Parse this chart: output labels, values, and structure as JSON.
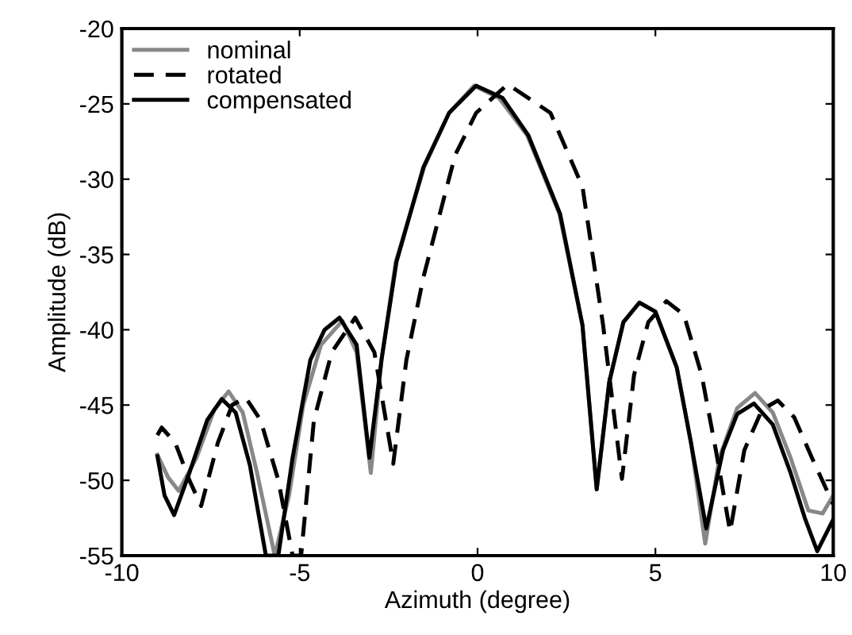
{
  "chart_data": {
    "type": "line",
    "xlabel": "Azimuth (degree)",
    "ylabel": "Amplitude (dB)",
    "xlim": [
      -10,
      10
    ],
    "ylim": [
      -55,
      -20
    ],
    "xticks": [
      -10,
      -5,
      0,
      5,
      10
    ],
    "yticks": [
      -55,
      -50,
      -45,
      -40,
      -35,
      -30,
      -25,
      -20
    ],
    "grid": false,
    "legend": "top left",
    "series": [
      {
        "name": "nominal",
        "color": "#888888",
        "line_style": "solid",
        "x": [
          -9,
          -8.7,
          -8.4,
          -7.9,
          -7.4,
          -7.0,
          -6.6,
          -6.2,
          -5.7,
          -5.3,
          -4.9,
          -4.4,
          -3.8,
          -3.4,
          -3.0,
          -2.7,
          -2.3,
          -1.5,
          -0.8,
          -0.1,
          0.6,
          1.4,
          2.3,
          2.95,
          3.35,
          3.7,
          4.1,
          4.55,
          5.0,
          5.6,
          6.0,
          6.4,
          6.8,
          7.3,
          7.8,
          8.3,
          8.8,
          9.3,
          9.7,
          10
        ],
        "values": [
          -48.3,
          -49.8,
          -50.7,
          -48.5,
          -45.3,
          -44.1,
          -45.5,
          -49.5,
          -55,
          -51.0,
          -45.0,
          -41.0,
          -39.4,
          -41.5,
          -49.5,
          -42.0,
          -35.5,
          -29.2,
          -25.6,
          -23.8,
          -24.6,
          -27.1,
          -32.3,
          -39.7,
          -50.6,
          -43.5,
          -39.5,
          -38.2,
          -38.8,
          -42.5,
          -47.5,
          -54.2,
          -48.5,
          -45.2,
          -44.2,
          -45.5,
          -48.5,
          -52.0,
          -52.2,
          -51.0
        ]
      },
      {
        "name": "rotated",
        "color": "#000000",
        "line_style": "dashed",
        "x": [
          -9,
          -8.88,
          -8.5,
          -8.1,
          -7.77,
          -7.3,
          -6.9,
          -6.52,
          -6.1,
          -5.6,
          -5.2,
          -4.96,
          -4.6,
          -4.1,
          -3.44,
          -2.9,
          -2.37,
          -2.0,
          -1.52,
          -0.63,
          -0.04,
          0.85,
          2.05,
          2.95,
          3.53,
          4.06,
          4.4,
          4.8,
          5.31,
          5.8,
          6.3,
          6.7,
          7.1,
          7.5,
          8.0,
          8.44,
          8.9,
          9.4,
          10
        ],
        "values": [
          -47.0,
          -46.5,
          -47.5,
          -50.0,
          -51.7,
          -47.5,
          -45.0,
          -44.5,
          -46.0,
          -50.0,
          -55,
          -55,
          -46.0,
          -41.5,
          -39.2,
          -41.5,
          -48.9,
          -42.0,
          -36.5,
          -28.4,
          -25.6,
          -23.7,
          -25.6,
          -30.5,
          -39.7,
          -49.9,
          -43.0,
          -39.5,
          -38.1,
          -39.0,
          -43.0,
          -48.0,
          -53.4,
          -48.0,
          -45.3,
          -44.7,
          -45.8,
          -48.5,
          -51.6
        ]
      },
      {
        "name": "compensated",
        "color": "#000000",
        "line_style": "solid",
        "x": [
          -9,
          -8.8,
          -8.53,
          -8.1,
          -7.6,
          -7.19,
          -6.8,
          -6.4,
          -5.95,
          -5.6,
          -5.2,
          -4.7,
          -4.3,
          -3.88,
          -3.4,
          -3.04,
          -2.7,
          -2.28,
          -1.52,
          -0.8,
          -0.04,
          0.7,
          1.43,
          2.32,
          2.95,
          3.35,
          3.7,
          4.1,
          4.55,
          5.0,
          5.6,
          6.0,
          6.43,
          6.9,
          7.3,
          7.77,
          8.3,
          8.8,
          9.2,
          9.55,
          10
        ],
        "values": [
          -48.4,
          -51.0,
          -52.3,
          -49.5,
          -46.0,
          -44.6,
          -45.5,
          -49.0,
          -55,
          -55,
          -48.5,
          -42.0,
          -40.0,
          -39.2,
          -41.0,
          -48.5,
          -42.0,
          -35.5,
          -29.2,
          -25.6,
          -23.8,
          -24.6,
          -27.1,
          -32.3,
          -39.7,
          -50.6,
          -43.5,
          -39.5,
          -38.2,
          -38.8,
          -42.5,
          -47.5,
          -53.2,
          -48.0,
          -45.6,
          -44.9,
          -46.3,
          -49.5,
          -52.5,
          -54.7,
          -52.6
        ]
      }
    ]
  }
}
